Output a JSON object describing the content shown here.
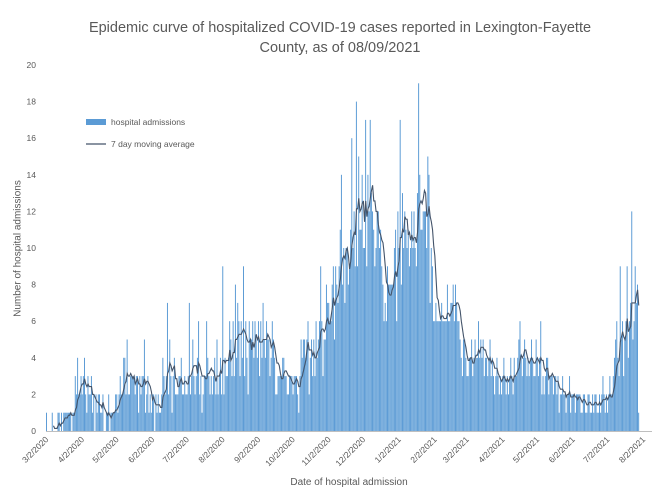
{
  "chart_data": {
    "type": "bar",
    "title_line1": "Epidemic curve of hospitalized COVID-19 cases reported in Lexington-Fayette",
    "title_line2": "County, as of 08/09/2021",
    "xlabel": "Date of hospital admission",
    "ylabel": "Number of hospital admissions",
    "ylim": [
      0,
      20
    ],
    "yticks": [
      0,
      2,
      4,
      6,
      8,
      10,
      12,
      14,
      16,
      18,
      20
    ],
    "date_range": [
      "2020-03-02",
      "2021-08-09"
    ],
    "xtick_labels": [
      "3/2/2020",
      "4/2/2020",
      "5/2/2020",
      "6/2/2020",
      "7/2/2020",
      "8/2/2020",
      "9/2/2020",
      "10/2/2020",
      "11/2/2020",
      "12/2/2020",
      "1/2/2021",
      "2/2/2021",
      "3/2/2021",
      "4/2/2021",
      "5/2/2021",
      "6/2/2021",
      "7/2/2021",
      "8/2/2021"
    ],
    "xtick_dates": [
      "2020-03-02",
      "2020-04-02",
      "2020-05-02",
      "2020-06-02",
      "2020-07-02",
      "2020-08-02",
      "2020-09-02",
      "2020-10-02",
      "2020-11-02",
      "2020-12-02",
      "2021-01-02",
      "2021-02-02",
      "2021-03-02",
      "2021-04-02",
      "2021-05-02",
      "2021-06-02",
      "2021-07-02",
      "2021-08-02"
    ],
    "legend": {
      "position": "top-left",
      "entries": [
        {
          "label": "hospital admissions",
          "kind": "bar",
          "color": "#5b9bd5"
        },
        {
          "label": "7 day moving average",
          "kind": "line",
          "color": "#44546a"
        }
      ]
    },
    "grid": false,
    "series": [
      {
        "name": "hospital admissions",
        "kind": "bar",
        "color": "#5b9bd5",
        "values": [
          1,
          0,
          0,
          0,
          0,
          1,
          0,
          0,
          0,
          0,
          1,
          1,
          0,
          1,
          0,
          1,
          1,
          1,
          1,
          1,
          1,
          1,
          0,
          1,
          1,
          3,
          2,
          4,
          2,
          2,
          3,
          2,
          3,
          4,
          2,
          1,
          3,
          2,
          2,
          3,
          1,
          2,
          0,
          2,
          1,
          2,
          2,
          1,
          1,
          2,
          0,
          0,
          1,
          1,
          2,
          0,
          1,
          1,
          1,
          1,
          2,
          2,
          1,
          2,
          3,
          2,
          2,
          4,
          4,
          2,
          5,
          2,
          2,
          3,
          3,
          3,
          3,
          2,
          3,
          3,
          1,
          3,
          2,
          3,
          3,
          5,
          1,
          2,
          3,
          1,
          2,
          1,
          2,
          2,
          0,
          2,
          1,
          2,
          1,
          1,
          2,
          4,
          3,
          2,
          3,
          7,
          2,
          5,
          3,
          1,
          3,
          4,
          2,
          2,
          2,
          3,
          3,
          4,
          2,
          2,
          3,
          2,
          2,
          3,
          7,
          2,
          3,
          5,
          3,
          2,
          3,
          4,
          6,
          2,
          3,
          1,
          2,
          3,
          3,
          6,
          4,
          3,
          2,
          3,
          2,
          3,
          4,
          2,
          5,
          2,
          3,
          4,
          2,
          9,
          2,
          4,
          3,
          3,
          4,
          6,
          5,
          3,
          6,
          3,
          8,
          4,
          7,
          6,
          3,
          6,
          4,
          9,
          3,
          6,
          4,
          2,
          6,
          5,
          5,
          6,
          4,
          6,
          5,
          4,
          6,
          3,
          6,
          4,
          7,
          5,
          4,
          6,
          5,
          5,
          3,
          4,
          6,
          5,
          4,
          2,
          2,
          3,
          3,
          3,
          3,
          4,
          4,
          3,
          3,
          2,
          2,
          3,
          3,
          3,
          2,
          3,
          3,
          3,
          2,
          1,
          3,
          5,
          4,
          5,
          5,
          4,
          5,
          6,
          2,
          4,
          5,
          3,
          5,
          3,
          6,
          4,
          5,
          6,
          9,
          6,
          3,
          5,
          5,
          8,
          7,
          7,
          6,
          6,
          8,
          9,
          5,
          9,
          8,
          7,
          9,
          11,
          14,
          8,
          10,
          7,
          10,
          10,
          8,
          9,
          11,
          16,
          10,
          12,
          9,
          18,
          9,
          15,
          11,
          11,
          14,
          10,
          10,
          17,
          9,
          14,
          12,
          17,
          13,
          12,
          11,
          9,
          10,
          12,
          12,
          10,
          11,
          9,
          8,
          6,
          7,
          6,
          9,
          8,
          8,
          8,
          8,
          8,
          10,
          11,
          6,
          12,
          10,
          17,
          8,
          13,
          10,
          12,
          11,
          10,
          11,
          9,
          10,
          12,
          10,
          12,
          10,
          9,
          13,
          19,
          14,
          11,
          11,
          12,
          12,
          12,
          10,
          15,
          14,
          7,
          10,
          9,
          6,
          6,
          7,
          6,
          6,
          6,
          6,
          7,
          6,
          6,
          6,
          6,
          8,
          6,
          6,
          7,
          7,
          8,
          6,
          8,
          7,
          6,
          6,
          5,
          4,
          3,
          5,
          5,
          4,
          3,
          3,
          4,
          4,
          5,
          3,
          4,
          5,
          4,
          4,
          6,
          4,
          5,
          4,
          5,
          3,
          4,
          4,
          3,
          4,
          5,
          3,
          4,
          3,
          2,
          3,
          4,
          3,
          2,
          3,
          2,
          3,
          4,
          3,
          2,
          3,
          2,
          3,
          4,
          3,
          2,
          4,
          3,
          3,
          4,
          5,
          6,
          4,
          3,
          4,
          5,
          4,
          3,
          4,
          3,
          4,
          5,
          4,
          3,
          3,
          5,
          4,
          3,
          4,
          6,
          2,
          3,
          2,
          3,
          4,
          4,
          2,
          3,
          3,
          3,
          2,
          3,
          3,
          2,
          3,
          1,
          2,
          2,
          3,
          2,
          2,
          1,
          2,
          2,
          3,
          1,
          2,
          2,
          2,
          1,
          2,
          2,
          2,
          2,
          1,
          1,
          2,
          2,
          1,
          1,
          2,
          2,
          1,
          1,
          2,
          1,
          2,
          2,
          1,
          1,
          2,
          1,
          2,
          3,
          2,
          1,
          2,
          1,
          2,
          3,
          2,
          2,
          3,
          4,
          5,
          6,
          4,
          3,
          9,
          5,
          6,
          3,
          5,
          6,
          9,
          4,
          6,
          7,
          12,
          5,
          6,
          9,
          7,
          8,
          1
        ]
      },
      {
        "name": "7 day moving average",
        "kind": "line",
        "color": "#44546a",
        "values": []
      }
    ]
  }
}
